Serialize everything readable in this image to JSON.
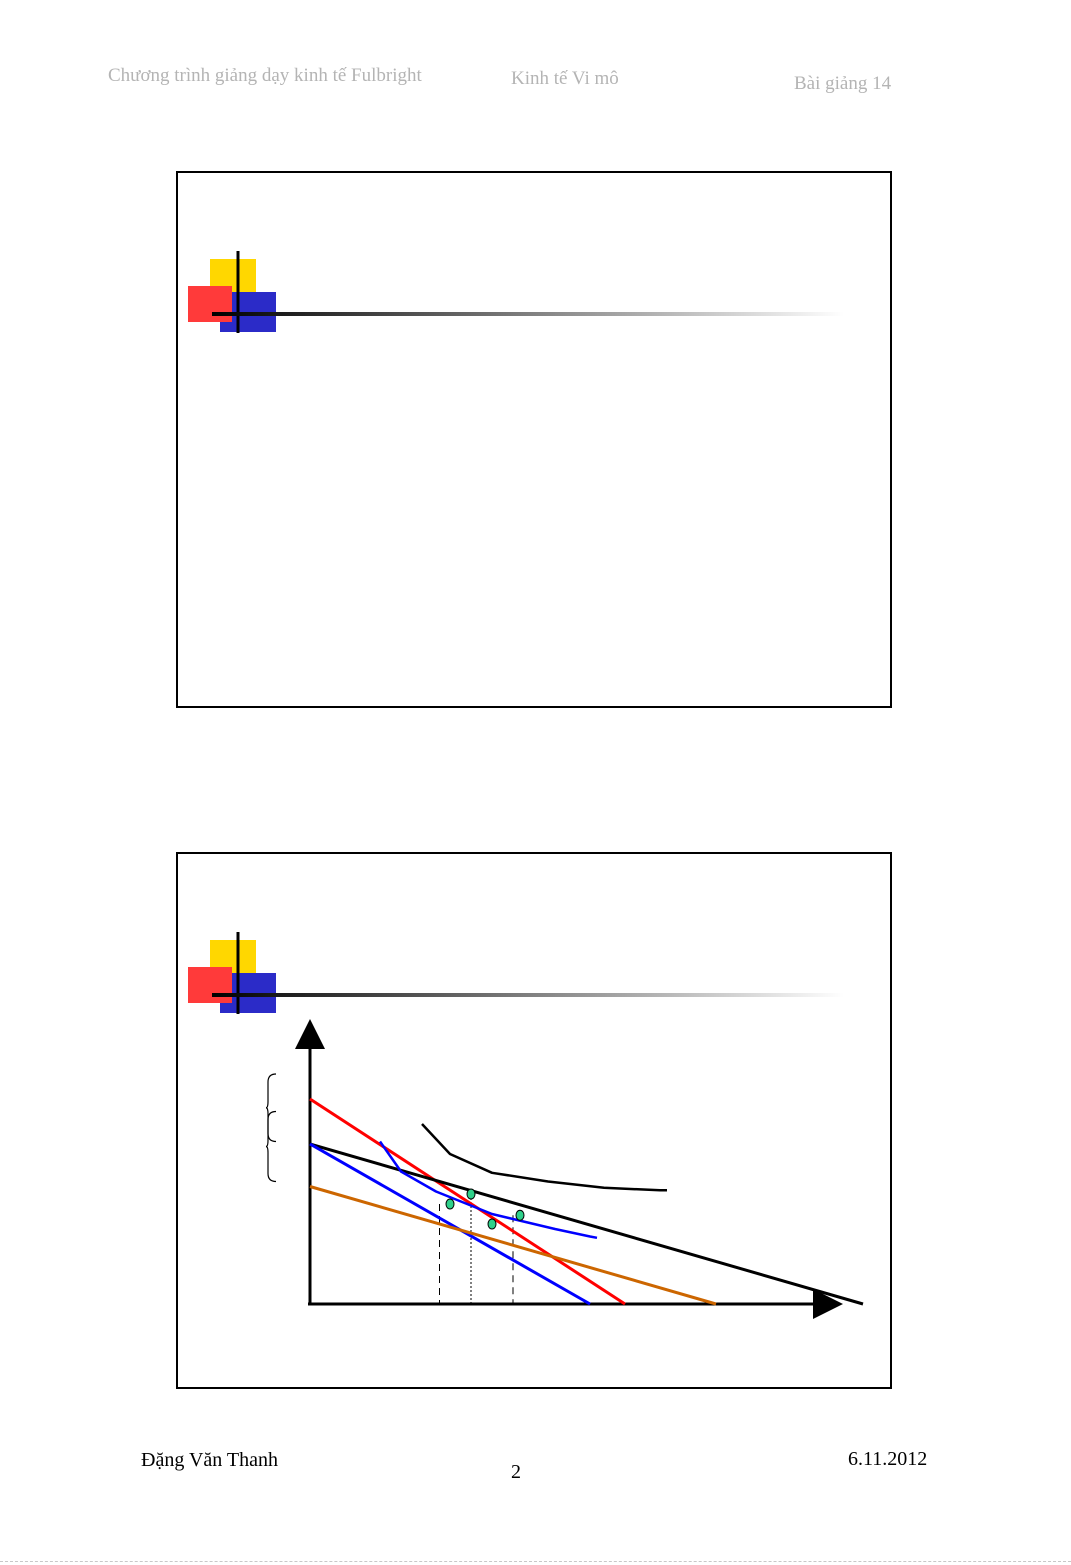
{
  "header": {
    "program": "Chương trình giảng dạy kinh tế Fulbright",
    "course": "Kinh tế Vi mô",
    "lecture": "Bài giảng 14"
  },
  "footer": {
    "author": "Đặng Văn Thanh",
    "page_number": "2",
    "date": "6.11.2012"
  },
  "colors": {
    "deco_yellow": "#ffd700",
    "deco_red": "#ff3a3a",
    "deco_blue": "#2b2bc8",
    "budget_red": "#ff0000",
    "budget_blue": "#0000ff",
    "budget_orange": "#cc6600",
    "budget_black": "#000000",
    "point_fill": "#2fd08a"
  },
  "chart_data": {
    "type": "line",
    "title": "",
    "xlabel": "",
    "ylabel": "",
    "grid": false,
    "legend": "none",
    "xlim": [
      0,
      10
    ],
    "ylim": [
      0,
      10
    ],
    "budget_lines": [
      {
        "color": "red",
        "x_intercept": 4.5,
        "y_intercept": 8.2
      },
      {
        "color": "black",
        "x_intercept": 7.9,
        "y_intercept": 6.4
      },
      {
        "color": "blue",
        "x_intercept": 4.0,
        "y_intercept": 6.4
      },
      {
        "color": "orange",
        "x_intercept": 5.8,
        "y_intercept": 4.7
      }
    ],
    "indifference_curves": [
      {
        "color": "black",
        "x": [
          1.6,
          2.0,
          2.6,
          3.4,
          4.2,
          5.0,
          5.1
        ],
        "y": [
          7.2,
          6.0,
          5.25,
          4.9,
          4.65,
          4.55,
          4.55
        ]
      },
      {
        "color": "blue",
        "x": [
          1.0,
          1.3,
          1.8,
          2.6,
          3.5,
          4.0,
          4.1
        ],
        "y": [
          6.5,
          5.3,
          4.5,
          3.6,
          3.0,
          2.7,
          2.65
        ]
      }
    ],
    "points": [
      {
        "x": 2.3,
        "y": 4.4
      },
      {
        "x": 3.0,
        "y": 3.55
      },
      {
        "x": 2.0,
        "y": 4.0
      },
      {
        "x": 2.6,
        "y": 3.2
      }
    ],
    "dashed_drops": [
      1.85,
      2.3,
      2.9
    ],
    "brace_ranges": [
      [
        6.5,
        9.2
      ],
      [
        4.9,
        7.7
      ]
    ]
  }
}
